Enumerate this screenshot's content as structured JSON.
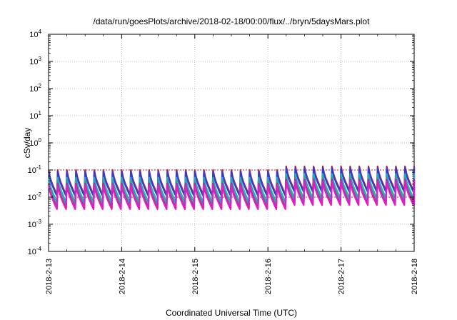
{
  "chart_data": {
    "type": "line",
    "title": "/data/run/goesPlots/archive/2018-02-18/00:00/flux/../bryn/5daysMars.plot",
    "xlabel": "Coordinated Universal Time (UTC)",
    "ylabel": "cSv/day",
    "x_range": [
      "2018-2-13",
      "2018-2-18"
    ],
    "x_tick_labels": [
      "2018-2-13",
      "2018-2-14",
      "2018-2-15",
      "2018-2-16",
      "2018-2-17",
      "2018-2-18"
    ],
    "y_scale": "log",
    "ylim": [
      0.0001,
      10000
    ],
    "y_ticks": [
      {
        "base": "10",
        "exp": "-4",
        "value": 0.0001
      },
      {
        "base": "10",
        "exp": "-3",
        "value": 0.001
      },
      {
        "base": "10",
        "exp": "-2",
        "value": 0.01
      },
      {
        "base": "10",
        "exp": "-1",
        "value": 0.1
      },
      {
        "base": "10",
        "exp": "0",
        "value": 1
      },
      {
        "base": "10",
        "exp": "1",
        "value": 10
      },
      {
        "base": "10",
        "exp": "2",
        "value": 100
      },
      {
        "base": "10",
        "exp": "3",
        "value": 1000
      },
      {
        "base": "10",
        "exp": "4",
        "value": 10000
      }
    ],
    "grid": true,
    "legend": "none",
    "reference_lines": [
      {
        "value": 0.1,
        "color": "#d42020"
      },
      {
        "value": 0.01,
        "color": "#d42020"
      }
    ],
    "sawtooth": {
      "cycles_per_day": 8,
      "period1": {
        "end_day": 3.2,
        "peak": 0.095,
        "trough": 0.012
      },
      "period2": {
        "end_day": 5.0,
        "peak": 0.13,
        "trough": 0.017
      }
    },
    "series": [
      {
        "color": "#d42020",
        "factor": 1.05
      },
      {
        "color": "#2a3fd6",
        "factor": 0.92
      },
      {
        "color": "#1fb0c8",
        "factor": 0.55
      },
      {
        "color": "#3aa0a0",
        "factor": 0.45
      },
      {
        "color": "#8a3f8a",
        "factor": 0.34
      },
      {
        "color": "#e81ac8",
        "factor": 0.3
      }
    ]
  }
}
